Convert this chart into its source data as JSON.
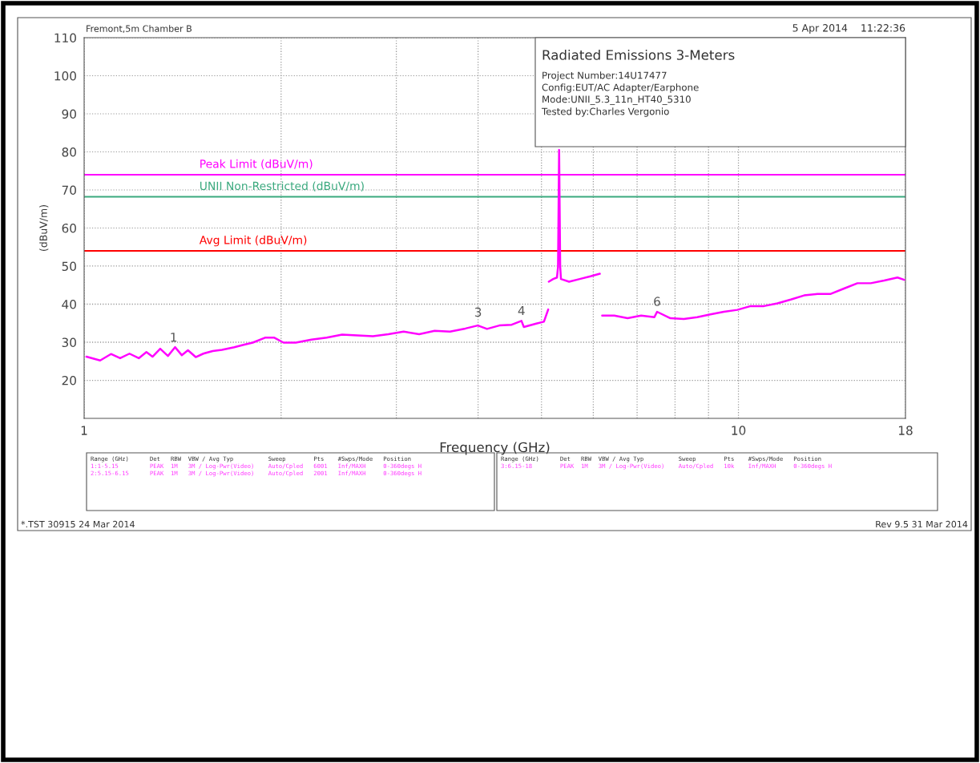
{
  "chart_data": {
    "type": "line",
    "title": "Radiated Emissions 3-Meters",
    "xlabel": "Frequency (GHz)",
    "ylabel": "(dBuV/m)",
    "log": "x",
    "grid": true,
    "xlim": [
      1,
      18
    ],
    "xticks": [
      1,
      {
        "value": 2,
        "label": null
      },
      {
        "value": 3,
        "label": null
      },
      {
        "value": 4,
        "label": null
      },
      {
        "value": 5,
        "label": null
      },
      {
        "value": 6,
        "label": null
      },
      {
        "value": 7,
        "label": null
      },
      {
        "value": 8,
        "label": null
      },
      {
        "value": 9,
        "label": null
      },
      10,
      18
    ],
    "ylim": [
      10,
      110
    ],
    "yticks": [
      20,
      30,
      40,
      50,
      60,
      70,
      80,
      90,
      100,
      110
    ],
    "series": [
      {
        "color": "#ff00ff",
        "x": [
          1.008,
          1.058,
          1.099,
          1.135,
          1.173,
          1.212,
          1.245,
          1.272,
          1.307,
          1.343,
          1.377,
          1.41,
          1.441,
          1.481,
          1.521,
          1.572,
          1.624,
          1.696,
          1.752,
          1.81,
          1.89,
          1.953,
          2.017,
          2.106,
          2.225,
          2.348,
          2.479,
          2.617,
          2.763,
          2.917,
          3.078,
          3.251,
          3.433,
          3.624,
          3.825,
          3.996,
          4.128,
          4.311,
          4.502,
          4.66,
          4.699,
          4.909,
          5.043,
          5.12,
          5.125,
          5.13,
          5.21,
          5.28,
          5.3,
          5.32,
          5.34,
          5.355,
          5.51,
          5.72,
          5.94,
          6.14,
          6.15,
          6.19,
          6.46,
          6.77,
          7.1,
          7.44,
          7.51,
          7.87,
          8.25,
          8.65,
          9.06,
          9.5,
          9.96,
          10.44,
          10.94,
          11.47,
          12.02,
          12.6,
          13.2,
          13.84,
          14.5,
          15.2,
          15.93,
          16.7,
          17.5,
          17.92
        ],
        "values": [
          26.2,
          25.2,
          26.9,
          25.8,
          27.0,
          25.8,
          27.4,
          26.2,
          28.3,
          26.4,
          28.7,
          26.6,
          27.9,
          26.1,
          27.0,
          27.7,
          28.0,
          28.7,
          29.3,
          29.9,
          31.2,
          31.2,
          29.9,
          29.9,
          30.7,
          31.2,
          32.0,
          31.8,
          31.6,
          32.1,
          32.8,
          32.1,
          33.0,
          32.8,
          33.6,
          34.4,
          33.5,
          34.4,
          34.6,
          35.6,
          34.0,
          34.9,
          35.4,
          38.6,
          null,
          45.9,
          46.6,
          47.0,
          49.8,
          80.5,
          49.8,
          46.6,
          45.9,
          46.6,
          47.3,
          48.0,
          null,
          37.0,
          37.0,
          36.3,
          37.0,
          36.6,
          38.0,
          36.3,
          36.1,
          36.6,
          37.3,
          38.0,
          38.5,
          39.5,
          39.5,
          40.2,
          41.2,
          42.3,
          42.7,
          42.7,
          44.1,
          45.5,
          45.5,
          46.2,
          47.0,
          46.4
        ]
      }
    ],
    "ref_lines": [
      {
        "axis": "y",
        "value": 74,
        "label": "Peak Limit (dBuV/m)",
        "color": "#ff00ff"
      },
      {
        "axis": "y",
        "value": 68.2,
        "label": "UNII Non-Restricted (dBuV/m)",
        "color": "#3aa97e"
      },
      {
        "axis": "y",
        "value": 54,
        "label": "Avg Limit (dBuV/m)",
        "color": "#ff0000"
      }
    ],
    "annotations": [
      "Fremont,5m Chamber B",
      "5 Apr 2014    11:22:36",
      "Project Number:14U17477",
      "Config:EUT/AC Adapter/Earphone",
      "Mode:UNII_5.3_11n_HT40_5310",
      "Tested by:Charles Vergonio",
      "Range (GHz)      Det   RBW  VBW / Avg Typ          Sweep        Pts    #Swps/Mode   Position",
      "1:1-5.15         PEAK  1M   3M / Log-Pwr(Video)    Auto/Cpled   6001   Inf/MAXH     0-360degs H",
      "2:5.15-6.15      PEAK  1M   3M / Log-Pwr(Video)    Auto/Cpled   2001   Inf/MAXH     0-360degs H",
      "Range (GHz)      Det   RBW  VBW / Avg Typ          Sweep        Pts    #Swps/Mode   Position",
      "3:6.15-18        PEAK  1M   3M / Log-Pwr(Video)    Auto/Cpled   10k    Inf/MAXH     0-360degs H",
      "*.TST 30915 24 Mar 2014",
      "Rev 9.5 31 Mar 2014",
      {
        "text": "1",
        "x": 1.37,
        "y": 28.6
      },
      {
        "text": "3",
        "x": 4.0,
        "y": 35.2
      },
      {
        "text": "4",
        "x": 4.66,
        "y": 35.6
      },
      {
        "text": "6",
        "x": 7.51,
        "y": 38.0
      }
    ]
  }
}
